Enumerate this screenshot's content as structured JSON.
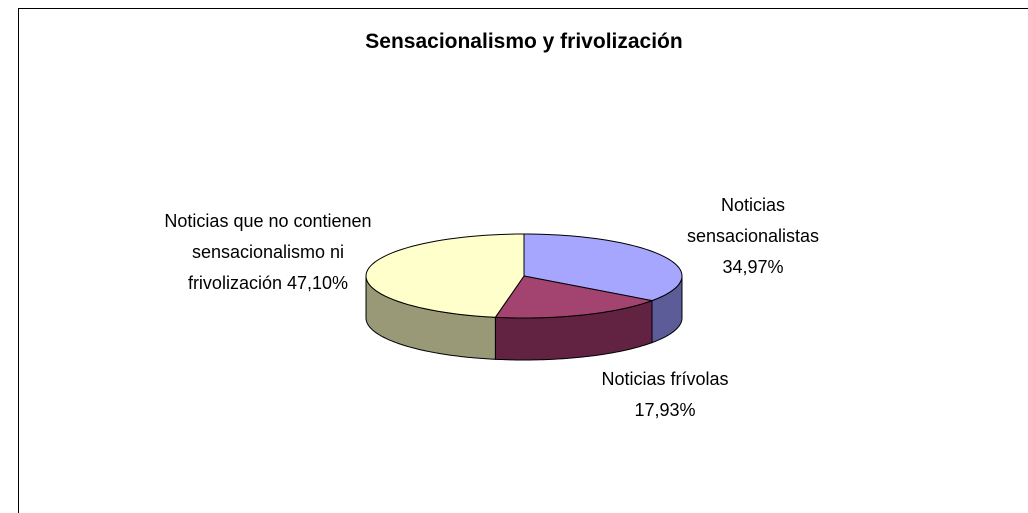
{
  "chart_data": {
    "type": "pie",
    "title": "Sensacionalismo y frivolización",
    "categories": [
      "Noticias sensacionalistas",
      "Noticias frívolas",
      "Noticias que no contienen sensacionalismo ni frivolización"
    ],
    "values": [
      34.97,
      17.93,
      47.1
    ],
    "value_labels": [
      "34,97%",
      "17,93%",
      "47,10%"
    ],
    "colors": [
      "#a6a6ff",
      "#a3436f",
      "#ffffcc"
    ],
    "side_colors": [
      "#5c5c99",
      "#622343",
      "#999977"
    ]
  }
}
